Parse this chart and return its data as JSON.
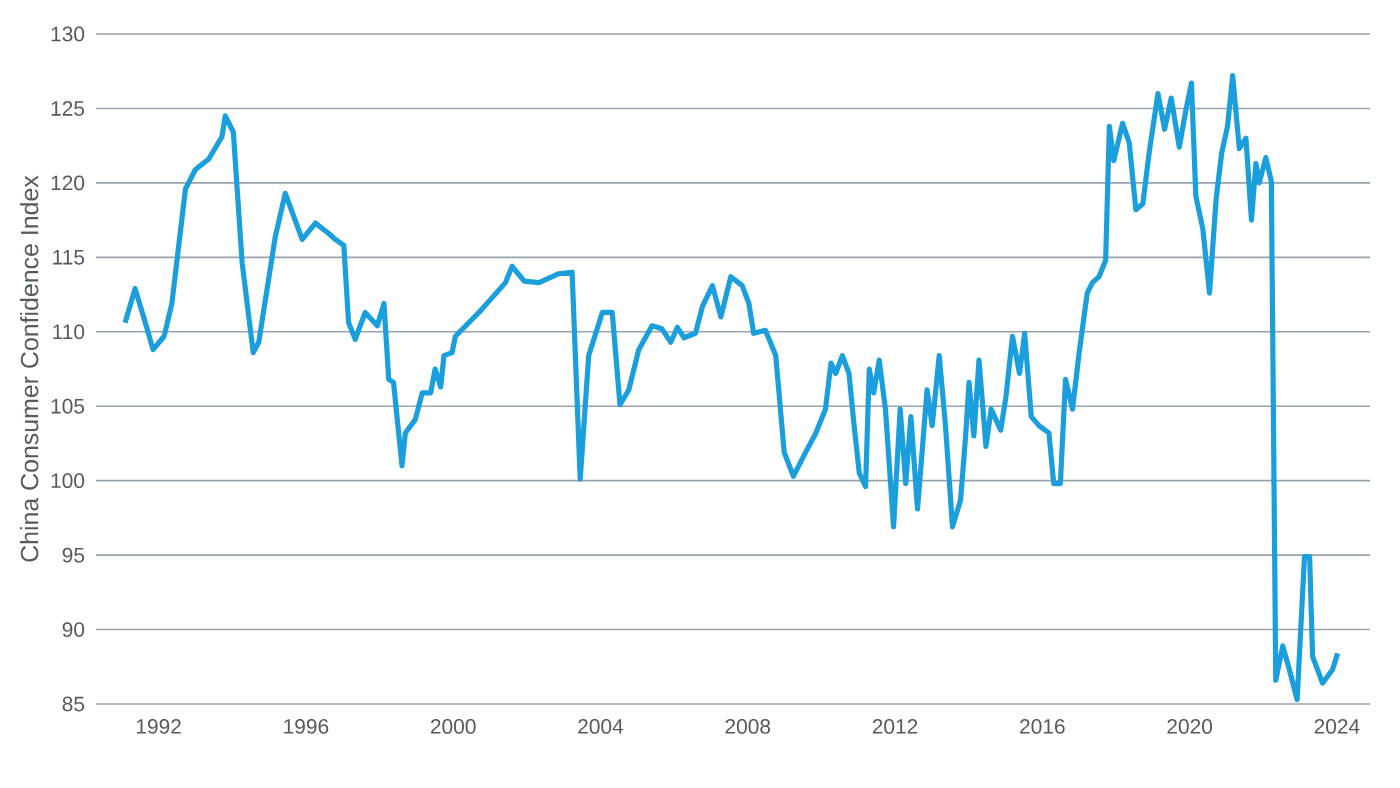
{
  "chart_data": {
    "type": "line",
    "ylabel": "China Consumer Confidence Index",
    "xlim": [
      1990.3,
      2024.9
    ],
    "xticks": [
      1992,
      1996,
      2000,
      2004,
      2008,
      2012,
      2016,
      2020,
      2024
    ],
    "ylim": [
      85,
      130
    ],
    "yticks": [
      85,
      90,
      95,
      100,
      105,
      110,
      115,
      120,
      125,
      130
    ],
    "grid": "y",
    "marker": "none",
    "line_style": "solid",
    "series": [
      {
        "color": "#1a9fdc",
        "x": [
          1991.09,
          1991.36,
          1991.64,
          1991.85,
          1992.15,
          1992.36,
          1992.73,
          1993.0,
          1993.36,
          1993.72,
          1993.81,
          1994.03,
          1994.27,
          1994.57,
          1994.72,
          1995.17,
          1995.44,
          1995.9,
          1996.26,
          1996.62,
          1996.8,
          1997.03,
          1997.16,
          1997.34,
          1997.61,
          1997.94,
          1998.12,
          1998.25,
          1998.38,
          1998.61,
          1998.7,
          1998.97,
          1999.16,
          1999.39,
          1999.51,
          1999.66,
          1999.75,
          1999.97,
          2000.06,
          2000.7,
          2001.42,
          2001.6,
          2001.93,
          2002.33,
          2002.87,
          2003.23,
          2003.45,
          2003.68,
          2004.05,
          2004.32,
          2004.53,
          2004.77,
          2005.04,
          2005.4,
          2005.67,
          2005.91,
          2006.09,
          2006.27,
          2006.58,
          2006.77,
          2007.04,
          2007.27,
          2007.54,
          2007.85,
          2008.03,
          2008.16,
          2008.48,
          2008.76,
          2008.99,
          2009.24,
          2009.57,
          2009.85,
          2010.11,
          2010.26,
          2010.39,
          2010.57,
          2010.75,
          2010.88,
          2011.03,
          2011.2,
          2011.3,
          2011.42,
          2011.57,
          2011.74,
          2011.96,
          2012.14,
          2012.29,
          2012.43,
          2012.61,
          2012.87,
          2013.01,
          2013.2,
          2013.37,
          2013.56,
          2013.78,
          2013.92,
          2014.01,
          2014.14,
          2014.28,
          2014.47,
          2014.61,
          2014.87,
          2015.01,
          2015.19,
          2015.38,
          2015.52,
          2015.7,
          2015.91,
          2016.18,
          2016.31,
          2016.49,
          2016.63,
          2016.82,
          2017.0,
          2017.22,
          2017.36,
          2017.54,
          2017.72,
          2017.82,
          2017.94,
          2018.18,
          2018.36,
          2018.54,
          2018.73,
          2018.9,
          2019.14,
          2019.32,
          2019.5,
          2019.72,
          2019.9,
          2020.05,
          2020.17,
          2020.36,
          2020.54,
          2020.72,
          2020.87,
          2021.03,
          2021.17,
          2021.35,
          2021.53,
          2021.68,
          2021.8,
          2021.89,
          2022.07,
          2022.22,
          2022.34,
          2022.53,
          2022.71,
          2022.92,
          2023.12,
          2023.26,
          2023.34,
          2023.61,
          2023.88,
          2024.02
        ],
        "values": [
          110.6,
          112.9,
          110.6,
          108.8,
          109.7,
          111.9,
          119.6,
          120.9,
          121.6,
          123.1,
          124.5,
          123.4,
          114.6,
          108.6,
          109.3,
          116.4,
          119.3,
          116.2,
          117.3,
          116.6,
          116.2,
          115.8,
          110.6,
          109.5,
          111.3,
          110.4,
          111.9,
          106.8,
          106.6,
          101.0,
          103.2,
          104.1,
          105.9,
          105.9,
          107.5,
          106.3,
          108.4,
          108.6,
          109.7,
          111.3,
          113.3,
          114.4,
          113.4,
          113.3,
          113.9,
          114.0,
          100.1,
          108.4,
          111.3,
          111.3,
          105.1,
          106.1,
          108.8,
          110.4,
          110.2,
          109.3,
          110.3,
          109.6,
          109.9,
          111.7,
          113.1,
          111.0,
          113.7,
          113.1,
          111.9,
          109.9,
          110.1,
          108.4,
          101.9,
          100.3,
          101.9,
          103.2,
          104.8,
          107.9,
          107.2,
          108.4,
          107.2,
          103.9,
          100.5,
          99.6,
          107.5,
          105.9,
          108.1,
          104.8,
          96.9,
          104.8,
          99.8,
          104.3,
          98.1,
          106.1,
          103.7,
          108.4,
          103.7,
          96.9,
          98.7,
          103.1,
          106.6,
          103.0,
          108.1,
          102.3,
          104.8,
          103.4,
          105.6,
          109.7,
          107.2,
          109.9,
          104.3,
          103.7,
          103.2,
          99.8,
          99.8,
          106.8,
          104.8,
          108.6,
          112.6,
          113.3,
          113.7,
          114.8,
          123.8,
          121.5,
          124.0,
          122.7,
          118.2,
          118.6,
          122.0,
          126.0,
          123.6,
          125.7,
          122.4,
          124.9,
          126.7,
          119.1,
          116.9,
          112.6,
          118.9,
          122.0,
          123.8,
          127.2,
          122.3,
          123.0,
          117.5,
          121.3,
          120.0,
          121.7,
          120.1,
          86.6,
          88.9,
          87.3,
          85.3,
          94.9,
          94.9,
          88.2,
          86.4,
          87.3,
          88.4
        ]
      }
    ]
  }
}
